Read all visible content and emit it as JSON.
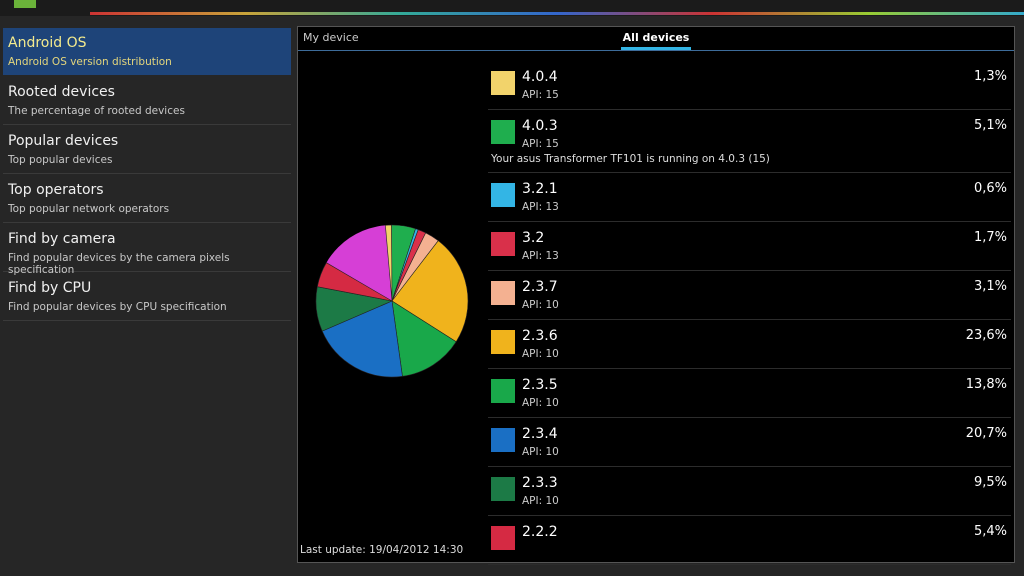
{
  "sidebar": [
    {
      "title": "Android OS",
      "subtitle": "Android OS version distribution"
    },
    {
      "title": "Rooted devices",
      "subtitle": "The percentage of rooted devices"
    },
    {
      "title": "Popular devices",
      "subtitle": "Top popular devices"
    },
    {
      "title": "Top operators",
      "subtitle": "Top popular network operators"
    },
    {
      "title": "Find by camera",
      "subtitle": "Find popular devices by the camera pixels specification"
    },
    {
      "title": "Find by CPU",
      "subtitle": "Find popular devices by CPU specification"
    }
  ],
  "tabs": [
    "My device",
    "All devices"
  ],
  "distribution": {
    "type": "pie",
    "items": [
      {
        "version": "4.0.4",
        "api": "API: 15",
        "percent": 1.3,
        "percent_label": "1,3%",
        "color": "#f2d36b"
      },
      {
        "version": "4.0.3",
        "api": "API: 15",
        "percent": 5.1,
        "percent_label": "5,1%",
        "color": "#1fae4e",
        "note": "Your asus Transformer TF101 is running on 4.0.3 (15)"
      },
      {
        "version": "3.2.1",
        "api": "API: 13",
        "percent": 0.6,
        "percent_label": "0,6%",
        "color": "#33b5e5"
      },
      {
        "version": "3.2",
        "api": "API: 13",
        "percent": 1.7,
        "percent_label": "1,7%",
        "color": "#d9304a"
      },
      {
        "version": "2.3.7",
        "api": "API: 10",
        "percent": 3.1,
        "percent_label": "3,1%",
        "color": "#f4b191"
      },
      {
        "version": "2.3.6",
        "api": "API: 10",
        "percent": 23.6,
        "percent_label": "23,6%",
        "color": "#f0b31c"
      },
      {
        "version": "2.3.5",
        "api": "API: 10",
        "percent": 13.8,
        "percent_label": "13,8%",
        "color": "#19a84a"
      },
      {
        "version": "2.3.4",
        "api": "API: 10",
        "percent": 20.7,
        "percent_label": "20,7%",
        "color": "#1a6fc4"
      },
      {
        "version": "2.3.3",
        "api": "API: 10",
        "percent": 9.5,
        "percent_label": "9,5%",
        "color": "#1c7a46"
      },
      {
        "version": "2.2.2",
        "api": null,
        "percent": 5.4,
        "percent_label": "5,4%",
        "color": "#d52a43"
      }
    ]
  },
  "footer": "Last update: 19/04/2012 14:30"
}
